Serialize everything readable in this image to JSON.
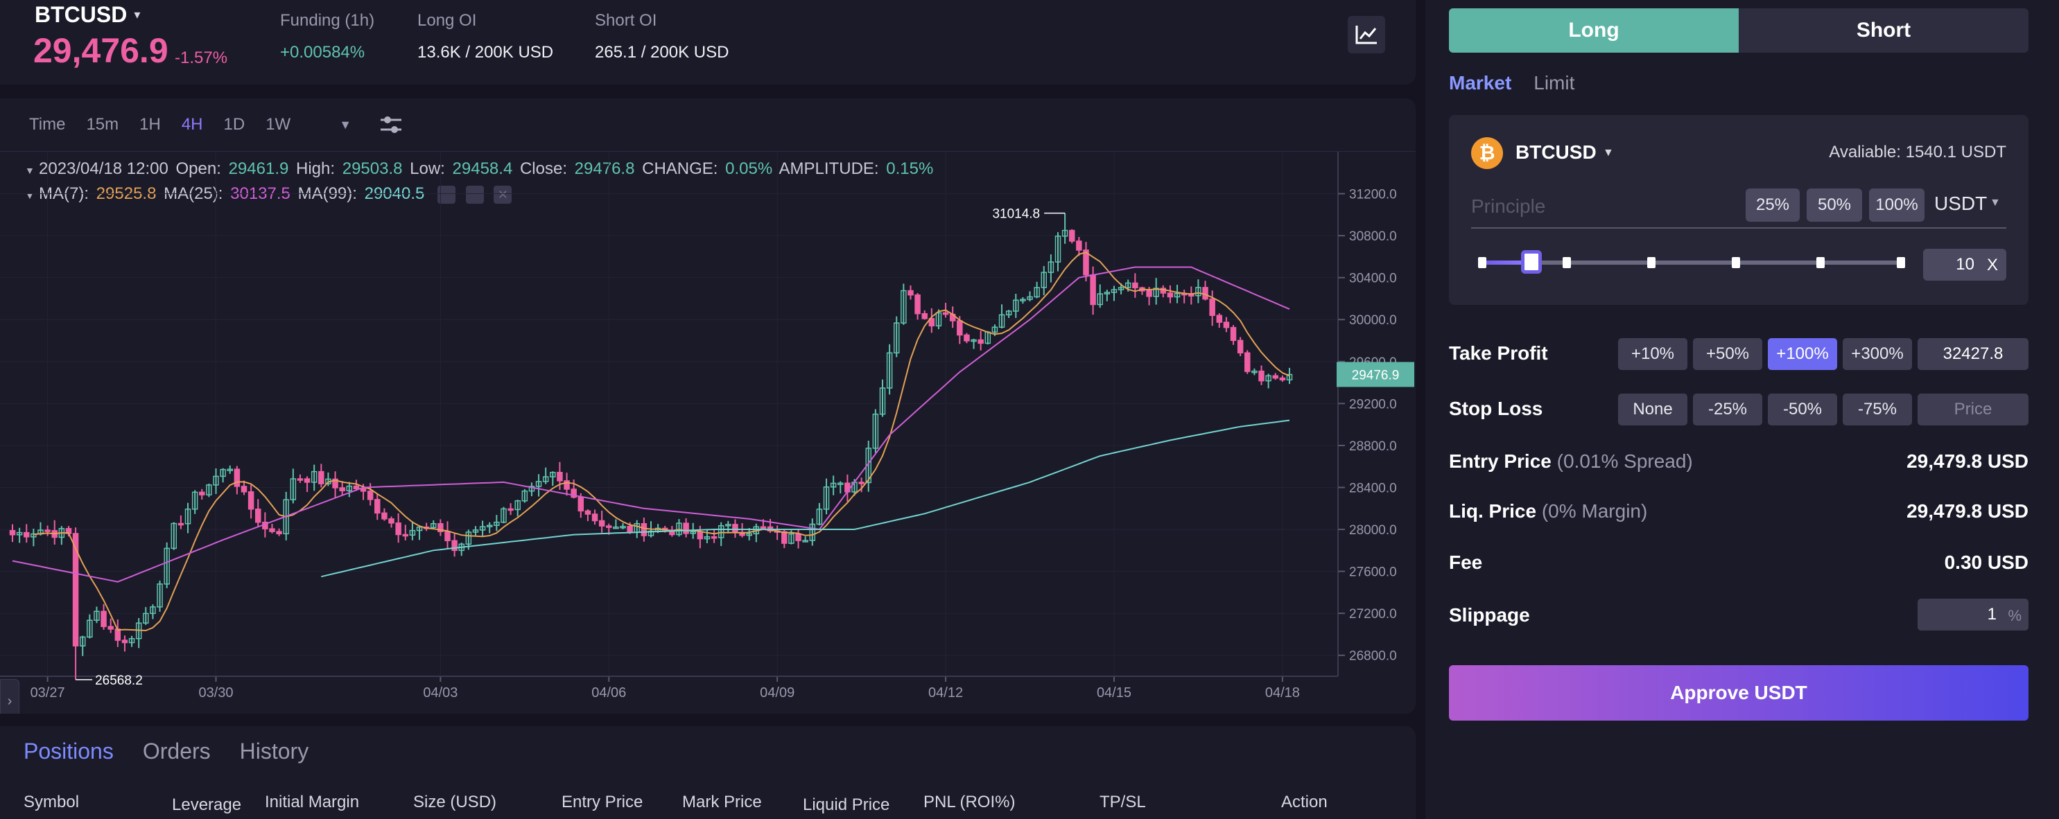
{
  "header": {
    "symbol": "BTCUSD",
    "price": "29,476.9",
    "change": "-1.57%",
    "funding_label": "Funding (1h)",
    "funding_value": "+0.00584%",
    "long_oi_label": "Long OI",
    "long_oi_value": "13.6K / 200K USD",
    "short_oi_label": "Short OI",
    "short_oi_value": "265.1 / 200K USD",
    "chart_icon": "line-chart-icon"
  },
  "timebar": {
    "items": [
      "Time",
      "15m",
      "1H",
      "4H",
      "1D",
      "1W"
    ],
    "active": "4H"
  },
  "ohlc": {
    "date": "2023/04/18 12:00",
    "open_label": "Open:",
    "open": "29461.9",
    "high_label": "High:",
    "high": "29503.8",
    "low_label": "Low:",
    "low": "29458.4",
    "close_label": "Close:",
    "close": "29476.8",
    "change_label": "CHANGE:",
    "change": "0.05%",
    "amp_label": "AMPLITUDE:",
    "amp": "0.15%"
  },
  "ma": {
    "ma7_label": "MA(7):",
    "ma7": "29525.8",
    "ma25_label": "MA(25):",
    "ma25": "30137.5",
    "ma99_label": "MA(99):",
    "ma99": "29040.5"
  },
  "colors": {
    "up": "#5fc4ad",
    "down": "#ee5fa3",
    "ma7": "#e3a255",
    "ma25": "#d05fd6",
    "ma99": "#73d6d0",
    "accent": "#8c7bff"
  },
  "chart_data": {
    "type": "candlestick",
    "y_ticks": [
      "31200.0",
      "30800.0",
      "30400.0",
      "30000.0",
      "29600.0",
      "29200.0",
      "28800.0",
      "28400.0",
      "28000.0",
      "27600.0",
      "27200.0",
      "26800.0"
    ],
    "ylim": [
      26600,
      31600
    ],
    "x_ticks": [
      "03/27",
      "03/30",
      "04/03",
      "04/06",
      "04/09",
      "04/12",
      "04/15",
      "04/18"
    ],
    "x_tick_index": [
      5,
      29,
      61,
      85,
      109,
      133,
      157,
      181
    ],
    "current_price_label": "29476.9",
    "current_price": 29476.9,
    "high_marker": "31014.8",
    "high_marker_value": 31014.8,
    "high_marker_index": 150,
    "low_marker": "26568.2",
    "low_marker_value": 26568.2,
    "low_marker_index": 9,
    "close_anchors": [
      [
        0,
        27950
      ],
      [
        4,
        28000
      ],
      [
        8,
        27950
      ],
      [
        9,
        26900
      ],
      [
        12,
        27200
      ],
      [
        16,
        26900
      ],
      [
        20,
        27300
      ],
      [
        23,
        28000
      ],
      [
        26,
        28300
      ],
      [
        29,
        28500
      ],
      [
        31,
        28600
      ],
      [
        33,
        28300
      ],
      [
        36,
        28000
      ],
      [
        38,
        28000
      ],
      [
        40,
        28500
      ],
      [
        43,
        28500
      ],
      [
        46,
        28400
      ],
      [
        49,
        28400
      ],
      [
        52,
        28200
      ],
      [
        55,
        28000
      ],
      [
        58,
        28000
      ],
      [
        61,
        28000
      ],
      [
        63,
        27800
      ],
      [
        66,
        28000
      ],
      [
        69,
        28100
      ],
      [
        72,
        28300
      ],
      [
        75,
        28400
      ],
      [
        77,
        28500
      ],
      [
        80,
        28300
      ],
      [
        83,
        28100
      ],
      [
        86,
        28000
      ],
      [
        89,
        28000
      ],
      [
        92,
        28000
      ],
      [
        95,
        28000
      ],
      [
        98,
        27900
      ],
      [
        101,
        28000
      ],
      [
        104,
        28000
      ],
      [
        107,
        28000
      ],
      [
        110,
        27900
      ],
      [
        113,
        27950
      ],
      [
        116,
        28400
      ],
      [
        119,
        28400
      ],
      [
        121,
        28500
      ],
      [
        123,
        29100
      ],
      [
        125,
        29700
      ],
      [
        127,
        30300
      ],
      [
        129,
        30100
      ],
      [
        131,
        30000
      ],
      [
        133,
        30100
      ],
      [
        136,
        29800
      ],
      [
        139,
        29850
      ],
      [
        142,
        30100
      ],
      [
        145,
        30200
      ],
      [
        148,
        30600
      ],
      [
        150,
        30900
      ],
      [
        152,
        30700
      ],
      [
        154,
        30200
      ],
      [
        157,
        30300
      ],
      [
        160,
        30300
      ],
      [
        163,
        30250
      ],
      [
        166,
        30200
      ],
      [
        169,
        30250
      ],
      [
        171,
        30050
      ],
      [
        173,
        29900
      ],
      [
        176,
        29500
      ],
      [
        178,
        29400
      ],
      [
        180,
        29450
      ],
      [
        181,
        29476.8
      ]
    ],
    "ma25_anchors": [
      [
        0,
        27700
      ],
      [
        15,
        27500
      ],
      [
        30,
        27900
      ],
      [
        50,
        28400
      ],
      [
        70,
        28450
      ],
      [
        90,
        28200
      ],
      [
        105,
        28100
      ],
      [
        115,
        28000
      ],
      [
        125,
        28900
      ],
      [
        135,
        29500
      ],
      [
        145,
        30000
      ],
      [
        152,
        30400
      ],
      [
        160,
        30500
      ],
      [
        168,
        30500
      ],
      [
        175,
        30300
      ],
      [
        182,
        30100
      ]
    ],
    "ma99_anchors": [
      [
        44,
        27550
      ],
      [
        60,
        27800
      ],
      [
        80,
        27950
      ],
      [
        100,
        28000
      ],
      [
        120,
        28000
      ],
      [
        130,
        28150
      ],
      [
        145,
        28450
      ],
      [
        155,
        28700
      ],
      [
        165,
        28850
      ],
      [
        175,
        28980
      ],
      [
        182,
        29040
      ]
    ]
  },
  "positions": {
    "tabs": [
      "Positions",
      "Orders",
      "History"
    ],
    "columns": [
      "Symbol",
      "Leverage",
      "Initial Margin",
      "Size (USD)",
      "Entry Price",
      "Mark Price",
      "Liquid Price",
      "PNL (ROI%)",
      "TP/SL",
      "Action"
    ]
  },
  "order": {
    "long_label": "Long",
    "short_label": "Short",
    "market_label": "Market",
    "limit_label": "Limit",
    "symbol": "BTCUSD",
    "available": "Avaliable: 1540.1 USDT",
    "principle_placeholder": "Principle",
    "pct_buttons": [
      "25%",
      "50%",
      "100%"
    ],
    "currency": "USDT",
    "leverage": "10",
    "leverage_unit": "X",
    "leverage_fraction": 0.1,
    "take_profit_label": "Take Profit",
    "tp_buttons": [
      "+10%",
      "+50%",
      "+100%",
      "+300%"
    ],
    "tp_active": "+100%",
    "tp_value": "32427.8",
    "stop_loss_label": "Stop Loss",
    "sl_buttons": [
      "None",
      "-25%",
      "-50%",
      "-75%"
    ],
    "sl_placeholder": "Price",
    "entry_label": "Entry Price",
    "entry_note": "(0.01% Spread)",
    "entry_value": "29,479.8 USD",
    "liq_label": "Liq. Price",
    "liq_note": "(0% Margin)",
    "liq_value": "29,479.8 USD",
    "fee_label": "Fee",
    "fee_value": "0.30 USD",
    "slippage_label": "Slippage",
    "slippage_value": "1",
    "slippage_unit": "%",
    "approve_label": "Approve USDT"
  }
}
